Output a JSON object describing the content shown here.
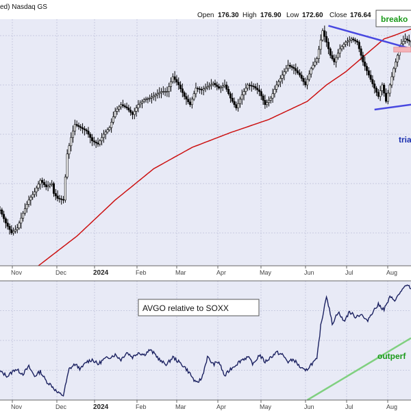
{
  "header": {
    "left_fragment": "ed) Nasdaq GS",
    "open_label": "Open",
    "open_value": "176.30",
    "high_label": "High",
    "high_value": "176.90",
    "low_label": "Low",
    "low_value": "172.60",
    "close_label": "Close",
    "close_value": "176.64"
  },
  "colors": {
    "background": "#e8eaf6",
    "candle": "#000000",
    "sma": "#cc1111",
    "triangle": "#4848e0",
    "breakout_box": "#f5b3b8",
    "breakout_text": "#1a9a1a",
    "triangle_text": "#1a2fb0",
    "relative_line": "#1a2060",
    "outperform_line": "#80d080",
    "outperform_text": "#1a9a1a"
  },
  "chart_data": [
    {
      "type": "candlestick",
      "title": "",
      "x_labels": [
        "Nov",
        "Dec",
        "2024",
        "Feb",
        "Mar",
        "Apr",
        "May",
        "Jun",
        "Jul",
        "Aug"
      ],
      "x_labels_bold": [
        "2024"
      ],
      "x_range": [
        0,
        214
      ],
      "ylim": [
        40,
        190
      ],
      "grid": true,
      "price_anchors": [
        [
          0,
          74
        ],
        [
          3,
          66
        ],
        [
          6,
          60
        ],
        [
          9,
          63
        ],
        [
          12,
          72
        ],
        [
          15,
          80
        ],
        [
          18,
          85
        ],
        [
          21,
          92
        ],
        [
          24,
          88
        ],
        [
          27,
          90
        ],
        [
          28,
          84
        ],
        [
          30,
          81
        ],
        [
          33,
          80
        ],
        [
          35,
          108
        ],
        [
          37,
          118
        ],
        [
          39,
          126
        ],
        [
          42,
          124
        ],
        [
          45,
          122
        ],
        [
          48,
          116
        ],
        [
          51,
          114
        ],
        [
          54,
          120
        ],
        [
          57,
          124
        ],
        [
          60,
          134
        ],
        [
          63,
          138
        ],
        [
          66,
          136
        ],
        [
          69,
          132
        ],
        [
          72,
          138
        ],
        [
          75,
          141
        ],
        [
          78,
          142
        ],
        [
          81,
          144
        ],
        [
          84,
          146
        ],
        [
          87,
          146
        ],
        [
          90,
          155
        ],
        [
          93,
          150
        ],
        [
          96,
          143
        ],
        [
          99,
          138
        ],
        [
          102,
          148
        ],
        [
          105,
          147
        ],
        [
          108,
          149
        ],
        [
          111,
          151
        ],
        [
          114,
          148
        ],
        [
          117,
          150
        ],
        [
          120,
          142
        ],
        [
          123,
          136
        ],
        [
          126,
          144
        ],
        [
          129,
          150
        ],
        [
          132,
          149
        ],
        [
          135,
          146
        ],
        [
          138,
          138
        ],
        [
          141,
          142
        ],
        [
          144,
          150
        ],
        [
          147,
          156
        ],
        [
          150,
          162
        ],
        [
          153,
          160
        ],
        [
          156,
          156
        ],
        [
          159,
          150
        ],
        [
          162,
          160
        ],
        [
          165,
          166
        ],
        [
          168,
          183
        ],
        [
          170,
          176
        ],
        [
          172,
          168
        ],
        [
          174,
          164
        ],
        [
          177,
          172
        ],
        [
          180,
          176
        ],
        [
          183,
          178
        ],
        [
          186,
          176
        ],
        [
          189,
          164
        ],
        [
          192,
          156
        ],
        [
          195,
          148
        ],
        [
          197,
          143
        ],
        [
          199,
          150
        ],
        [
          201,
          140
        ],
        [
          203,
          150
        ],
        [
          205,
          160
        ],
        [
          207,
          168
        ],
        [
          209,
          175
        ],
        [
          211,
          178
        ],
        [
          214,
          176
        ]
      ],
      "sma_anchors": [
        [
          20,
          40
        ],
        [
          40,
          58
        ],
        [
          60,
          80
        ],
        [
          80,
          99
        ],
        [
          100,
          112
        ],
        [
          120,
          121
        ],
        [
          140,
          129
        ],
        [
          160,
          140
        ],
        [
          170,
          150
        ],
        [
          180,
          158
        ],
        [
          190,
          168
        ],
        [
          200,
          178
        ],
        [
          205,
          180
        ],
        [
          214,
          184
        ]
      ],
      "last_bar": {
        "open": 176.3,
        "high": 176.9,
        "low": 172.6,
        "close": 176.64
      },
      "annotations": {
        "breakout_label": "breako",
        "triangle_label": "tria",
        "triangle_upper": [
          [
            171,
            186
          ],
          [
            214,
            172
          ]
        ],
        "triangle_lower": [
          [
            195,
            135
          ],
          [
            214,
            138
          ]
        ],
        "breakout_box": {
          "x0": 205,
          "x1": 214,
          "y0": 170,
          "y1": 173
        }
      }
    },
    {
      "type": "line",
      "title": "",
      "legend_label": "AVGO relative to SOXX",
      "x_labels": [
        "Nov",
        "Dec",
        "2024",
        "Feb",
        "Mar",
        "Apr",
        "May",
        "Jun",
        "Jul",
        "Aug"
      ],
      "x_labels_bold": [
        "2024"
      ],
      "x_range": [
        0,
        214
      ],
      "ylim": [
        0,
        100
      ],
      "grid": true,
      "series": [
        {
          "name": "AVGO relative to SOXX",
          "anchors": [
            [
              0,
              24
            ],
            [
              4,
              20
            ],
            [
              8,
              26
            ],
            [
              12,
              22
            ],
            [
              15,
              28
            ],
            [
              18,
              20
            ],
            [
              21,
              24
            ],
            [
              24,
              16
            ],
            [
              27,
              12
            ],
            [
              30,
              6
            ],
            [
              33,
              4
            ],
            [
              36,
              26
            ],
            [
              39,
              30
            ],
            [
              42,
              26
            ],
            [
              45,
              32
            ],
            [
              48,
              34
            ],
            [
              51,
              30
            ],
            [
              54,
              34
            ],
            [
              57,
              36
            ],
            [
              60,
              38
            ],
            [
              63,
              34
            ],
            [
              66,
              40
            ],
            [
              69,
              36
            ],
            [
              72,
              40
            ],
            [
              75,
              38
            ],
            [
              78,
              42
            ],
            [
              81,
              38
            ],
            [
              84,
              32
            ],
            [
              87,
              30
            ],
            [
              90,
              36
            ],
            [
              93,
              32
            ],
            [
              96,
              28
            ],
            [
              99,
              22
            ],
            [
              102,
              14
            ],
            [
              105,
              18
            ],
            [
              108,
              36
            ],
            [
              111,
              30
            ],
            [
              114,
              32
            ],
            [
              117,
              20
            ],
            [
              120,
              26
            ],
            [
              123,
              30
            ],
            [
              126,
              34
            ],
            [
              129,
              36
            ],
            [
              132,
              30
            ],
            [
              135,
              38
            ],
            [
              138,
              32
            ],
            [
              141,
              36
            ],
            [
              144,
              40
            ],
            [
              147,
              38
            ],
            [
              150,
              32
            ],
            [
              153,
              34
            ],
            [
              156,
              28
            ],
            [
              159,
              24
            ],
            [
              162,
              30
            ],
            [
              165,
              34
            ],
            [
              167,
              62
            ],
            [
              170,
              88
            ],
            [
              173,
              64
            ],
            [
              176,
              74
            ],
            [
              179,
              66
            ],
            [
              182,
              74
            ],
            [
              185,
              70
            ],
            [
              188,
              72
            ],
            [
              191,
              66
            ],
            [
              194,
              74
            ],
            [
              197,
              80
            ],
            [
              200,
              76
            ],
            [
              203,
              86
            ],
            [
              206,
              84
            ],
            [
              209,
              92
            ],
            [
              212,
              96
            ],
            [
              214,
              94
            ]
          ]
        },
        {
          "name": "outperf",
          "anchors": [
            [
              160,
              0
            ],
            [
              214,
              52
            ]
          ]
        }
      ],
      "annotations": {
        "outperform_label": "outperf"
      }
    }
  ]
}
